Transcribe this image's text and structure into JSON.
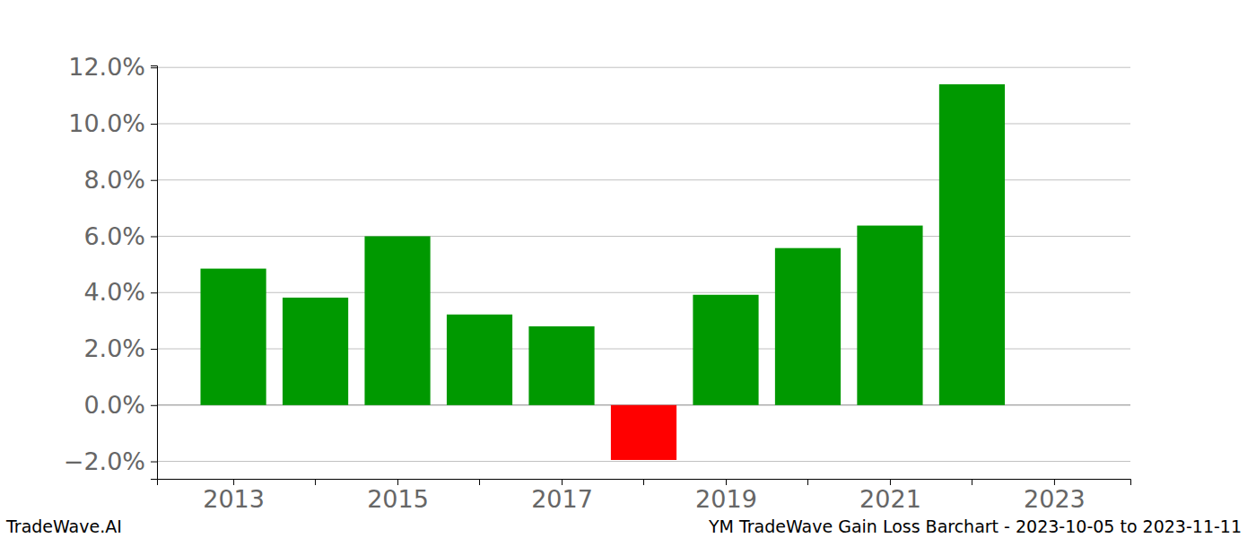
{
  "chart_data": {
    "type": "bar",
    "title": "YM TradeWave Gain Loss Barchart - 2023-10-05 to 2023-11-11",
    "annotations": [
      "TradeWave.AI"
    ],
    "x": [
      2013,
      2014,
      2015,
      2016,
      2017,
      2018,
      2019,
      2020,
      2021,
      2022
    ],
    "values": [
      4.85,
      3.82,
      6.0,
      3.22,
      2.8,
      -1.95,
      3.92,
      5.58,
      6.38,
      11.4
    ],
    "colors": [
      "#009900",
      "#009900",
      "#009900",
      "#009900",
      "#009900",
      "#ff0000",
      "#009900",
      "#009900",
      "#009900",
      "#009900"
    ],
    "xlim": [
      2012.07,
      2023.93
    ],
    "xticks": [
      2013,
      2015,
      2017,
      2019,
      2021,
      2023
    ],
    "ylim": [
      -2.62,
      12.07
    ],
    "yticks": [
      {
        "value": -2,
        "label": "−2.0%"
      },
      {
        "value": 0,
        "label": "0.0%"
      },
      {
        "value": 2,
        "label": "2.0%"
      },
      {
        "value": 4,
        "label": "4.0%"
      },
      {
        "value": 6,
        "label": "6.0%"
      },
      {
        "value": 8,
        "label": "8.0%"
      },
      {
        "value": 10,
        "label": "10.0%"
      },
      {
        "value": 12,
        "label": "12.0%"
      }
    ],
    "grid": true
  }
}
